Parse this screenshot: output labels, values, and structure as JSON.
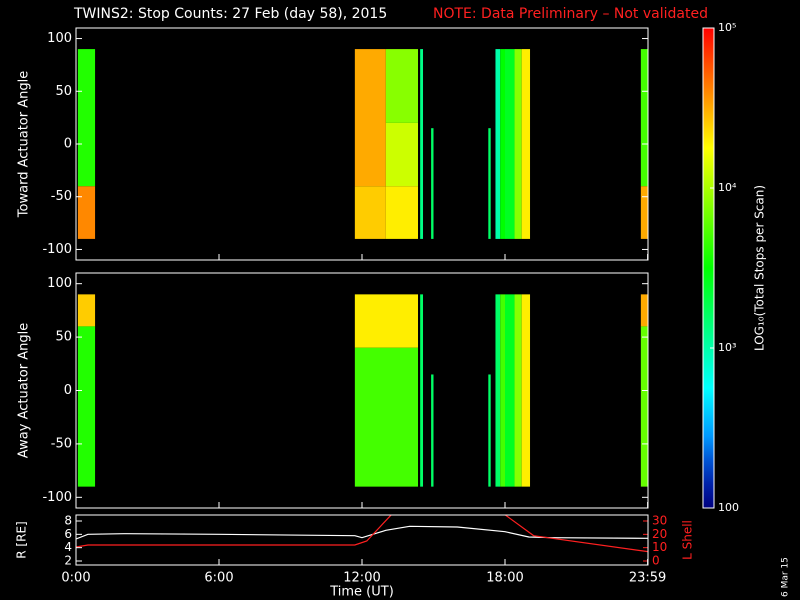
{
  "header": {
    "title": "TWINS2: Stop Counts: 27 Feb (day  58), 2015",
    "note": "NOTE: Data Preliminary – Not validated",
    "date": "6 Mar 15"
  },
  "chart_data": [
    {
      "type": "heatmap",
      "ylabel": "Toward Actuator Angle",
      "xlim": [
        0,
        24
      ],
      "ylim": [
        -110,
        110
      ],
      "yticks": [
        -100,
        -50,
        0,
        50,
        100
      ],
      "blocks": [
        {
          "t": [
            0.08,
            0.8
          ],
          "angle": [
            -90,
            -40
          ],
          "value": 4.6
        },
        {
          "t": [
            0.08,
            0.8
          ],
          "angle": [
            -40,
            90
          ],
          "value": 3.6
        },
        {
          "t": [
            11.7,
            13.0
          ],
          "angle": [
            -90,
            -40
          ],
          "value": 4.4
        },
        {
          "t": [
            11.7,
            13.0
          ],
          "angle": [
            -40,
            90
          ],
          "value": 4.5
        },
        {
          "t": [
            13.0,
            14.35
          ],
          "angle": [
            -90,
            -40
          ],
          "value": 4.3
        },
        {
          "t": [
            13.0,
            14.35
          ],
          "angle": [
            -40,
            20
          ],
          "value": 4.1
        },
        {
          "t": [
            13.0,
            14.35
          ],
          "angle": [
            20,
            90
          ],
          "value": 3.9
        },
        {
          "t": [
            14.44,
            14.56
          ],
          "angle": [
            -90,
            90
          ],
          "value": 3.1
        },
        {
          "t": [
            14.9,
            15.0
          ],
          "angle": [
            -90,
            15
          ],
          "value": 3.2
        },
        {
          "t": [
            17.3,
            17.4
          ],
          "angle": [
            -90,
            15
          ],
          "value": 3.2
        },
        {
          "t": [
            17.6,
            17.8
          ],
          "angle": [
            -90,
            90
          ],
          "value": 3.0
        },
        {
          "t": [
            17.8,
            18.0
          ],
          "angle": [
            -90,
            90
          ],
          "value": 3.5
        },
        {
          "t": [
            18.0,
            18.4
          ],
          "angle": [
            -90,
            90
          ],
          "value": 3.4
        },
        {
          "t": [
            18.4,
            18.7
          ],
          "angle": [
            -90,
            90
          ],
          "value": 3.9
        },
        {
          "t": [
            18.7,
            19.05
          ],
          "angle": [
            -90,
            90
          ],
          "value": 4.3
        },
        {
          "t": [
            23.7,
            24
          ],
          "angle": [
            -90,
            -40
          ],
          "value": 4.5
        },
        {
          "t": [
            23.7,
            24
          ],
          "angle": [
            -40,
            90
          ],
          "value": 3.7
        }
      ]
    },
    {
      "type": "heatmap",
      "ylabel": "Away Actuator Angle",
      "xlim": [
        0,
        24
      ],
      "ylim": [
        -110,
        110
      ],
      "yticks": [
        -100,
        -50,
        0,
        50,
        100
      ],
      "blocks": [
        {
          "t": [
            0.08,
            0.8
          ],
          "angle": [
            60,
            90
          ],
          "value": 4.4
        },
        {
          "t": [
            0.08,
            0.8
          ],
          "angle": [
            -90,
            60
          ],
          "value": 3.6
        },
        {
          "t": [
            11.7,
            14.35
          ],
          "angle": [
            40,
            90
          ],
          "value": 4.3
        },
        {
          "t": [
            11.7,
            14.35
          ],
          "angle": [
            -90,
            40
          ],
          "value": 3.7
        },
        {
          "t": [
            14.44,
            14.56
          ],
          "angle": [
            -90,
            90
          ],
          "value": 3.2
        },
        {
          "t": [
            14.9,
            15.0
          ],
          "angle": [
            -90,
            15
          ],
          "value": 3.2
        },
        {
          "t": [
            17.3,
            17.4
          ],
          "angle": [
            -90,
            15
          ],
          "value": 3.2
        },
        {
          "t": [
            17.6,
            17.8
          ],
          "angle": [
            -90,
            90
          ],
          "value": 3.2
        },
        {
          "t": [
            17.8,
            18.0
          ],
          "angle": [
            -90,
            90
          ],
          "value": 3.7
        },
        {
          "t": [
            18.0,
            18.4
          ],
          "angle": [
            -90,
            90
          ],
          "value": 3.4
        },
        {
          "t": [
            18.4,
            18.7
          ],
          "angle": [
            -90,
            90
          ],
          "value": 3.9
        },
        {
          "t": [
            18.7,
            19.05
          ],
          "angle": [
            -90,
            90
          ],
          "value": 4.3
        },
        {
          "t": [
            23.7,
            24
          ],
          "angle": [
            60,
            90
          ],
          "value": 4.5
        },
        {
          "t": [
            23.7,
            24
          ],
          "angle": [
            -90,
            60
          ],
          "value": 3.8
        }
      ]
    },
    {
      "type": "line",
      "xlabel": "Time (UT)",
      "ylabel": "R [RE]",
      "y2label": "L Shell",
      "xlim": [
        0,
        24
      ],
      "xticks": [
        {
          "value": 0,
          "label": "0:00"
        },
        {
          "value": 6,
          "label": "6:00"
        },
        {
          "value": 12,
          "label": "12:00"
        },
        {
          "value": 18,
          "label": "18:00"
        },
        {
          "value": 23.983,
          "label": "23:59"
        }
      ],
      "ylim": [
        1.4,
        8.9
      ],
      "yticks": [
        2,
        4,
        6,
        8
      ],
      "y2lim": [
        -3,
        34.5
      ],
      "y2ticks": [
        0,
        10,
        20,
        30
      ],
      "series": [
        {
          "color": "#ffffff",
          "x": [
            0,
            0.5,
            2,
            6,
            11.7,
            12,
            13,
            14,
            16,
            18,
            19,
            20,
            24
          ],
          "values": [
            5.3,
            6.0,
            6.1,
            6.0,
            5.8,
            5.5,
            6.6,
            7.2,
            7.1,
            6.4,
            5.6,
            5.5,
            5.4
          ]
        },
        {
          "color": "#ff2020",
          "axis": "y2",
          "x": [
            0,
            0.5,
            11.7,
            12.2,
            13.3,
            15,
            17.9,
            19.2,
            24
          ],
          "values": [
            10.5,
            12,
            12,
            15,
            36,
            null,
            36,
            19,
            7
          ]
        }
      ]
    },
    {
      "type": "colorbar",
      "label": "LOG₁₀(Total Stops per Scan)",
      "zlim": [
        2,
        5
      ],
      "ticks": [
        {
          "value": 5,
          "label": "10⁵"
        },
        {
          "value": 4,
          "label": "10⁴"
        },
        {
          "value": 3,
          "label": "10³"
        },
        {
          "value": 2,
          "label": "100"
        }
      ]
    }
  ]
}
